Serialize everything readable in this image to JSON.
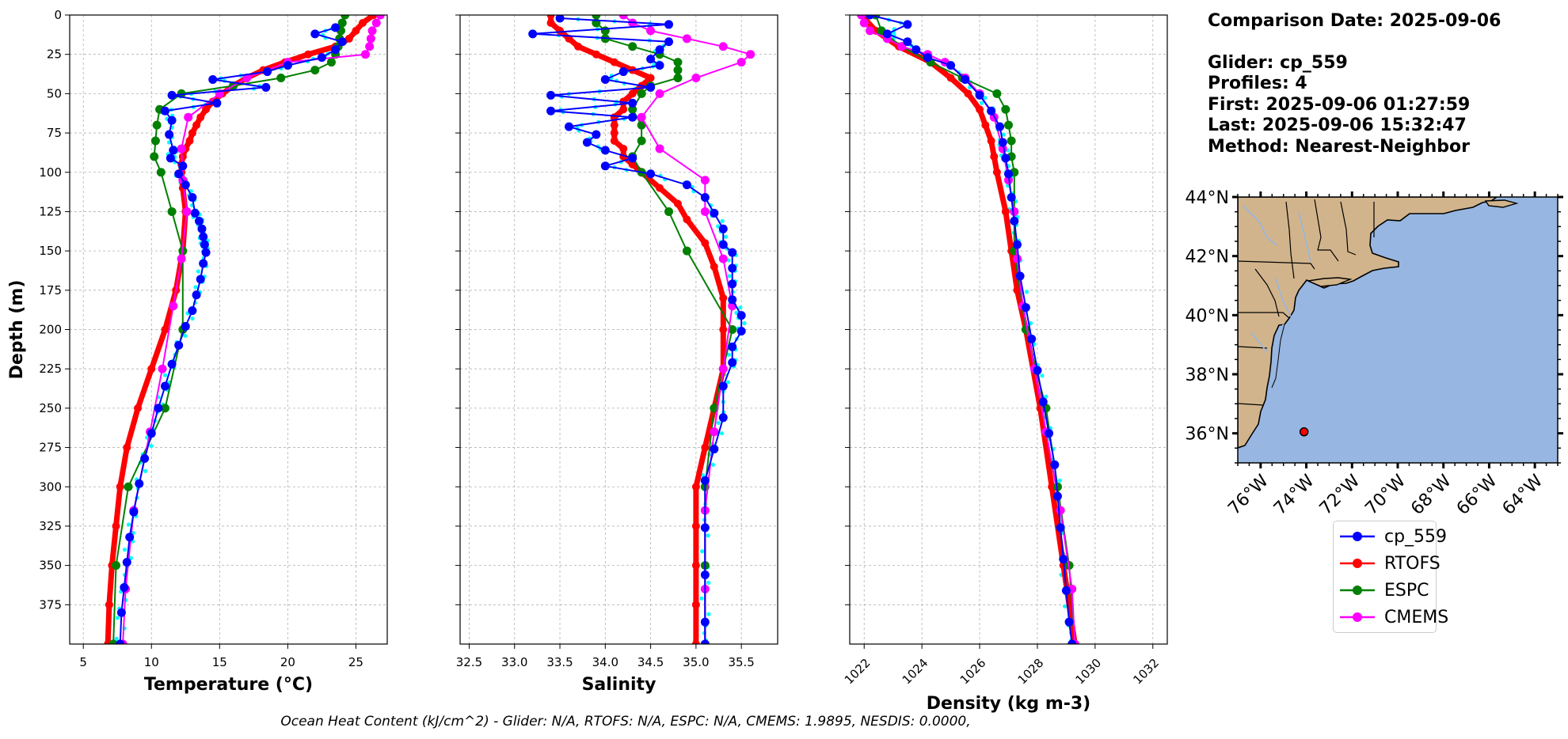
{
  "info": {
    "comparison_date": "Comparison Date: 2025-09-06",
    "glider": "Glider: cp_559",
    "profiles": "Profiles: 4",
    "first": "First: 2025-09-06 01:27:59",
    "last": "Last: 2025-09-06 15:32:47",
    "method": "Method: Nearest-Neighbor"
  },
  "footer": "Ocean Heat Content (kJ/cm^2) - Glider: N/A,  RTOFS: N/A,  ESPC: N/A,  CMEMS: 1.9895,  NESDIS: 0.0000,",
  "colors": {
    "glider": "#0000ff",
    "glider_raw": "#00ffff",
    "rtofs": "#ff0000",
    "espc": "#008000",
    "cmems": "#ff00ff",
    "land": "#d2b48c",
    "ocean": "#97b6e1"
  },
  "legend": [
    {
      "name": "cp_559",
      "color": "#0000ff"
    },
    {
      "name": "RTOFS",
      "color": "#ff0000"
    },
    {
      "name": "ESPC",
      "color": "#008000"
    },
    {
      "name": "CMEMS",
      "color": "#ff00ff"
    }
  ],
  "chart_data": [
    {
      "type": "line",
      "xlabel": "Temperature (°C)",
      "ylabel": "Depth (m)",
      "xlim": [
        4,
        27.3
      ],
      "ylim": [
        400,
        0
      ],
      "xticks": [
        5,
        10,
        15,
        20,
        25
      ],
      "yticks": [
        0,
        25,
        50,
        75,
        100,
        125,
        150,
        175,
        200,
        225,
        250,
        275,
        300,
        325,
        350,
        375
      ],
      "grid": true,
      "series": [
        {
          "name": "cp_559",
          "depth": [
            8,
            12,
            17,
            22,
            27,
            32,
            36,
            41,
            46,
            51,
            56,
            61,
            67,
            76,
            86,
            91,
            96,
            101,
            108,
            116,
            126,
            131,
            136,
            141,
            146,
            151,
            158,
            168,
            178,
            188,
            198,
            210,
            222,
            236,
            250,
            266,
            282,
            298,
            316,
            332,
            348,
            364,
            380,
            400
          ],
          "values": [
            23.5,
            22.0,
            24.0,
            23.5,
            22.5,
            20.0,
            18.5,
            14.5,
            18.4,
            11.5,
            14.8,
            11.0,
            11.5,
            11.3,
            11.6,
            11.4,
            12.3,
            12.0,
            12.5,
            13.0,
            13.2,
            13.5,
            13.7,
            13.8,
            13.9,
            14.0,
            13.8,
            13.6,
            13.3,
            13.0,
            12.5,
            12.0,
            11.5,
            11.0,
            10.5,
            10.0,
            9.5,
            9.1,
            8.7,
            8.4,
            8.2,
            8.0,
            7.8,
            7.7
          ]
        },
        {
          "name": "RTOFS",
          "depth": [
            0,
            5,
            10,
            15,
            20,
            25,
            30,
            35,
            40,
            45,
            50,
            55,
            60,
            65,
            70,
            75,
            80,
            85,
            90,
            95,
            100,
            110,
            125,
            150,
            175,
            200,
            225,
            250,
            275,
            300,
            325,
            350,
            375,
            400
          ],
          "values": [
            26.3,
            25.5,
            25.0,
            24.5,
            23.5,
            21.5,
            19.8,
            18.2,
            17.0,
            16.0,
            15.2,
            14.5,
            14.0,
            13.6,
            13.3,
            13.0,
            12.8,
            12.5,
            12.3,
            12.2,
            12.2,
            12.3,
            12.5,
            12.3,
            11.8,
            11.0,
            10.0,
            9.0,
            8.2,
            7.7,
            7.4,
            7.1,
            6.9,
            6.8
          ]
        },
        {
          "name": "ESPC",
          "depth": [
            0,
            5,
            10,
            15,
            20,
            25,
            30,
            35,
            40,
            45,
            50,
            60,
            70,
            80,
            90,
            100,
            125,
            150,
            200,
            250,
            300,
            350,
            400
          ],
          "values": [
            24.2,
            24.0,
            23.9,
            23.8,
            23.7,
            23.5,
            23.2,
            22.0,
            19.5,
            16.0,
            12.2,
            10.6,
            10.4,
            10.3,
            10.2,
            10.7,
            11.5,
            12.3,
            12.3,
            11.0,
            8.3,
            7.4,
            7.2
          ]
        },
        {
          "name": "CMEMS",
          "depth": [
            0,
            5,
            10,
            15,
            20,
            25,
            30,
            40,
            50,
            65,
            85,
            105,
            125,
            155,
            185,
            225,
            265,
            315,
            365,
            400
          ],
          "values": [
            26.8,
            26.5,
            26.2,
            26.1,
            26.0,
            25.7,
            20.0,
            17.0,
            15.0,
            12.7,
            12.2,
            12.3,
            12.6,
            12.2,
            11.6,
            10.8,
            9.9,
            8.7,
            8.1,
            7.9
          ]
        }
      ]
    },
    {
      "type": "line",
      "xlabel": "Salinity",
      "ylabel": "",
      "xlim": [
        32.4,
        35.9
      ],
      "ylim": [
        400,
        0
      ],
      "xticks": [
        32.5,
        33.0,
        33.5,
        34.0,
        34.5,
        35.0,
        35.5
      ],
      "grid": true,
      "series": [
        {
          "name": "cp_559",
          "depth": [
            2,
            6,
            12,
            17,
            22,
            28,
            32,
            36,
            41,
            46,
            51,
            56,
            61,
            65,
            71,
            76,
            81,
            86,
            91,
            96,
            101,
            108,
            116,
            126,
            136,
            146,
            151,
            161,
            171,
            181,
            191,
            201,
            211,
            221,
            236,
            256,
            276,
            296,
            326,
            356,
            386,
            400
          ],
          "values": [
            33.5,
            34.7,
            33.2,
            34.7,
            34.6,
            34.5,
            34.6,
            34.2,
            34.0,
            34.5,
            33.4,
            34.3,
            33.4,
            34.3,
            33.6,
            33.9,
            33.8,
            34.0,
            34.3,
            34.0,
            34.5,
            34.9,
            35.1,
            35.2,
            35.3,
            35.3,
            35.4,
            35.4,
            35.4,
            35.4,
            35.5,
            35.5,
            35.4,
            35.4,
            35.3,
            35.3,
            35.2,
            35.1,
            35.1,
            35.1,
            35.1,
            35.1
          ]
        },
        {
          "name": "RTOFS",
          "depth": [
            0,
            5,
            10,
            15,
            20,
            25,
            30,
            35,
            40,
            45,
            50,
            55,
            60,
            65,
            70,
            75,
            80,
            85,
            90,
            95,
            100,
            110,
            120,
            130,
            145,
            160,
            180,
            200,
            225,
            250,
            275,
            300,
            325,
            350,
            375,
            400
          ],
          "values": [
            33.4,
            33.4,
            33.5,
            33.6,
            33.7,
            33.9,
            34.1,
            34.3,
            34.5,
            34.4,
            34.3,
            34.2,
            34.2,
            34.1,
            34.1,
            34.1,
            34.1,
            34.2,
            34.2,
            34.3,
            34.4,
            34.6,
            34.8,
            34.9,
            35.1,
            35.2,
            35.3,
            35.3,
            35.3,
            35.2,
            35.1,
            35.0,
            35.0,
            35.0,
            35.0,
            35.0
          ]
        },
        {
          "name": "ESPC",
          "depth": [
            0,
            5,
            10,
            15,
            20,
            25,
            30,
            35,
            40,
            45,
            50,
            60,
            70,
            80,
            90,
            100,
            125,
            150,
            200,
            250,
            300,
            350,
            400
          ],
          "values": [
            33.9,
            33.9,
            34.0,
            34.0,
            34.3,
            34.6,
            34.8,
            34.8,
            34.8,
            34.5,
            34.4,
            34.3,
            34.4,
            34.4,
            34.3,
            34.4,
            34.7,
            34.9,
            35.4,
            35.2,
            35.1,
            35.1,
            35.1
          ]
        },
        {
          "name": "CMEMS",
          "depth": [
            0,
            5,
            10,
            15,
            20,
            25,
            30,
            40,
            50,
            65,
            85,
            105,
            125,
            155,
            185,
            225,
            265,
            315,
            365,
            400
          ],
          "values": [
            34.2,
            34.3,
            34.5,
            34.9,
            35.3,
            35.6,
            35.5,
            35.0,
            34.6,
            34.4,
            34.6,
            35.1,
            35.1,
            35.3,
            35.4,
            35.3,
            35.2,
            35.1,
            35.1,
            35.1
          ]
        }
      ]
    },
    {
      "type": "line",
      "xlabel": "Density (kg m-3)",
      "ylabel": "",
      "xlim": [
        1021.5,
        1032.5
      ],
      "ylim": [
        400,
        0
      ],
      "xticks": [
        1022,
        1024,
        1026,
        1028,
        1030,
        1032
      ],
      "grid": true,
      "series": [
        {
          "name": "cp_559",
          "depth": [
            0,
            6,
            12,
            17,
            22,
            27,
            32,
            41,
            51,
            61,
            71,
            81,
            91,
            101,
            116,
            131,
            146,
            166,
            186,
            206,
            226,
            246,
            266,
            286,
            306,
            326,
            346,
            366,
            386,
            400
          ],
          "values": [
            1022.2,
            1023.5,
            1022.8,
            1023.5,
            1023.8,
            1024.2,
            1025.0,
            1025.5,
            1026.0,
            1026.4,
            1026.7,
            1026.8,
            1026.9,
            1027.0,
            1027.1,
            1027.2,
            1027.3,
            1027.4,
            1027.6,
            1027.8,
            1028.0,
            1028.2,
            1028.4,
            1028.6,
            1028.7,
            1028.8,
            1028.9,
            1029.0,
            1029.1,
            1029.2
          ]
        },
        {
          "name": "RTOFS",
          "depth": [
            0,
            10,
            20,
            30,
            40,
            50,
            60,
            70,
            80,
            90,
            100,
            125,
            150,
            175,
            200,
            250,
            300,
            350,
            400
          ],
          "values": [
            1021.9,
            1022.4,
            1023.2,
            1024.3,
            1025.0,
            1025.6,
            1026.0,
            1026.2,
            1026.4,
            1026.5,
            1026.6,
            1026.9,
            1027.1,
            1027.3,
            1027.6,
            1028.1,
            1028.5,
            1028.9,
            1029.3
          ]
        },
        {
          "name": "ESPC",
          "depth": [
            0,
            10,
            20,
            30,
            40,
            50,
            60,
            70,
            80,
            90,
            100,
            125,
            150,
            200,
            250,
            300,
            350,
            400
          ],
          "values": [
            1022.4,
            1022.6,
            1023.3,
            1024.3,
            1025.4,
            1026.6,
            1026.9,
            1027.0,
            1027.1,
            1027.1,
            1027.2,
            1027.2,
            1027.2,
            1027.6,
            1028.3,
            1028.7,
            1029.1,
            1029.3
          ]
        },
        {
          "name": "CMEMS",
          "depth": [
            0,
            5,
            10,
            15,
            20,
            25,
            30,
            40,
            50,
            65,
            85,
            105,
            125,
            155,
            185,
            225,
            265,
            315,
            365,
            400
          ],
          "values": [
            1021.9,
            1022.0,
            1022.2,
            1022.8,
            1023.3,
            1024.2,
            1024.8,
            1025.5,
            1026.0,
            1026.5,
            1026.8,
            1027.0,
            1027.2,
            1027.3,
            1027.5,
            1027.9,
            1028.3,
            1028.8,
            1029.2,
            1029.3
          ]
        }
      ]
    },
    {
      "type": "map",
      "xticks": [
        "76°W",
        "74°W",
        "72°W",
        "70°W",
        "68°W",
        "66°W",
        "64°W"
      ],
      "yticks": [
        "44°N",
        "42°N",
        "40°N",
        "38°N",
        "36°N"
      ],
      "xlim": [
        -77,
        -63
      ],
      "ylim": [
        35,
        44
      ],
      "glider_position": {
        "lon": -74.1,
        "lat": 36.05
      }
    }
  ]
}
